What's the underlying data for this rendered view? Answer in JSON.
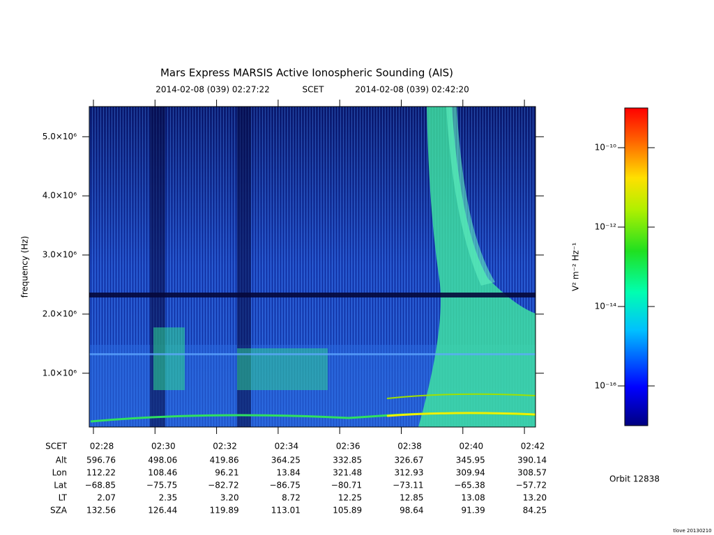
{
  "chart_data": {
    "type": "spectrogram",
    "title": "Mars Express MARSIS Active Ionospheric Sounding (AIS)",
    "start_time": "2014-02-08 (039) 02:27:22",
    "time_label": "SCET",
    "end_time": "2014-02-08 (039) 02:42:20",
    "ylabel": "frequency (Hz)",
    "ylim": [
      90000,
      5510000
    ],
    "yticks": [
      {
        "value": 1000000,
        "label": "1.0×10⁶"
      },
      {
        "value": 2000000,
        "label": "2.0×10⁶"
      },
      {
        "value": 3000000,
        "label": "3.0×10⁶"
      },
      {
        "value": 4000000,
        "label": "4.0×10⁶"
      },
      {
        "value": 5000000,
        "label": "5.0×10⁶"
      }
    ],
    "colorbar": {
      "label": "V² m⁻² Hz⁻¹",
      "scale": "log",
      "lim": [
        1e-17,
        1e-09
      ],
      "ticks": [
        {
          "value": 1e-10,
          "label": "10⁻¹⁰"
        },
        {
          "value": 1e-12,
          "label": "10⁻¹²"
        },
        {
          "value": 1e-14,
          "label": "10⁻¹⁴"
        },
        {
          "value": 1e-16,
          "label": "10⁻¹⁶"
        }
      ]
    },
    "ephemeris": {
      "row_labels": [
        "SCET",
        "Alt",
        "Lon",
        "Lat",
        "LT",
        "SZA"
      ],
      "rows": [
        [
          "02:28",
          "02:30",
          "02:32",
          "02:34",
          "02:36",
          "02:38",
          "02:40",
          "02:42"
        ],
        [
          "596.76",
          "498.06",
          "419.86",
          "364.25",
          "332.85",
          "326.67",
          "345.95",
          "390.14"
        ],
        [
          "112.22",
          "108.46",
          "96.21",
          "13.84",
          "321.48",
          "312.93",
          "309.94",
          "308.57"
        ],
        [
          "−68.85",
          "−75.75",
          "−82.72",
          "−86.75",
          "−80.71",
          "−73.11",
          "−65.38",
          "−57.72"
        ],
        [
          "2.07",
          "2.35",
          "3.20",
          "8.72",
          "12.25",
          "12.85",
          "13.08",
          "13.20"
        ],
        [
          "132.56",
          "126.44",
          "119.89",
          "113.01",
          "105.89",
          "98.64",
          "91.39",
          "84.25"
        ]
      ]
    },
    "orbit": "Orbit 12838",
    "credit": "tlove 20130210"
  }
}
